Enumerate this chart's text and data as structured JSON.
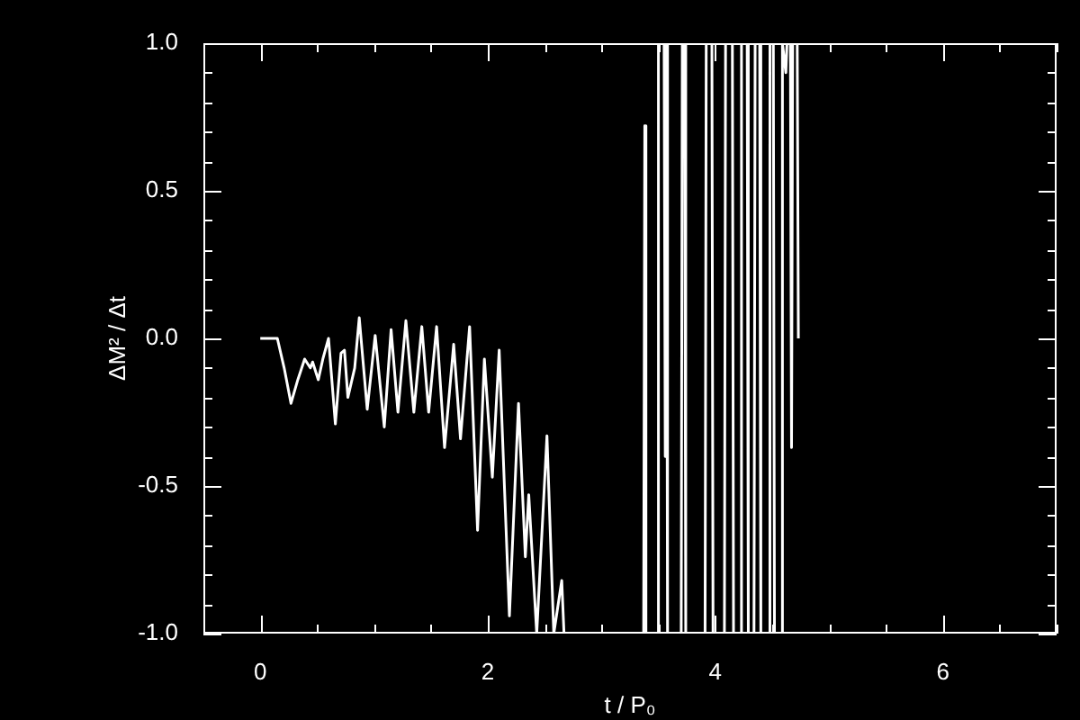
{
  "chart_data": {
    "type": "line",
    "xlabel": "t / P₀",
    "ylabel": "ΔM² / Δt",
    "color": "#ffffff",
    "marker": "none",
    "line_style": "solid",
    "grid": false,
    "xlim": [
      -0.5,
      7
    ],
    "xticks": [
      {
        "value": -0.5,
        "label": null
      },
      0,
      {
        "value": 0.5,
        "label": null
      },
      {
        "value": 1,
        "label": null
      },
      {
        "value": 1.5,
        "label": null
      },
      2,
      {
        "value": 2.5,
        "label": null
      },
      {
        "value": 3,
        "label": null
      },
      {
        "value": 3.5,
        "label": null
      },
      4,
      {
        "value": 4.5,
        "label": null
      },
      {
        "value": 5,
        "label": null
      },
      {
        "value": 5.5,
        "label": null
      },
      6,
      {
        "value": 6.5,
        "label": null
      },
      {
        "value": 7,
        "label": null
      }
    ],
    "ylim": [
      -1,
      1
    ],
    "yticks": [
      {
        "value": -1,
        "label": "-1.0"
      },
      {
        "value": -0.9,
        "label": null
      },
      {
        "value": -0.8,
        "label": null
      },
      {
        "value": -0.7,
        "label": null
      },
      {
        "value": -0.6,
        "label": null
      },
      {
        "value": -0.5,
        "label": "-0.5"
      },
      {
        "value": -0.4,
        "label": null
      },
      {
        "value": -0.3,
        "label": null
      },
      {
        "value": -0.2,
        "label": null
      },
      {
        "value": -0.1,
        "label": null
      },
      {
        "value": 0,
        "label": "0.0"
      },
      {
        "value": 0.1,
        "label": null
      },
      {
        "value": 0.2,
        "label": null
      },
      {
        "value": 0.3,
        "label": null
      },
      {
        "value": 0.4,
        "label": null
      },
      {
        "value": 0.5,
        "label": "0.5"
      },
      {
        "value": 0.6,
        "label": null
      },
      {
        "value": 0.7,
        "label": null
      },
      {
        "value": 0.8,
        "label": null
      },
      {
        "value": 0.9,
        "label": null
      },
      {
        "value": 1,
        "label": "1.0"
      }
    ],
    "x": [
      0,
      0.04,
      0.15,
      0.21,
      0.27,
      0.33,
      0.39,
      0.44,
      0.46,
      0.51,
      0.55,
      0.6,
      0.66,
      0.71,
      0.74,
      0.77,
      0.83,
      0.87,
      0.94,
      1.01,
      1.09,
      1.15,
      1.21,
      1.28,
      1.35,
      1.42,
      1.48,
      1.55,
      1.62,
      1.7,
      1.76,
      1.84,
      1.91,
      1.97,
      2.04,
      2.1,
      2.19,
      2.27,
      2.33,
      2.36,
      2.43,
      2.52,
      2.58,
      2.65,
      2.67,
      3.0,
      3.37,
      3.38,
      3.39,
      3.49,
      3.5,
      3.55,
      3.56,
      3.57,
      3.58,
      3.7,
      3.71,
      3.73,
      3.74,
      3.91,
      3.92,
      3.97,
      3.98,
      4.08,
      4.09,
      4.15,
      4.16,
      4.22,
      4.23,
      4.28,
      4.29,
      4.34,
      4.35,
      4.39,
      4.4,
      4.47,
      4.48,
      4.51,
      4.52,
      4.58,
      4.59,
      4.62,
      4.63,
      4.66,
      4.67,
      4.68,
      4.72,
      4.73
    ],
    "values": [
      0,
      0,
      0,
      -0.1,
      -0.22,
      -0.14,
      -0.07,
      -0.1,
      -0.08,
      -0.14,
      -0.07,
      0,
      -0.29,
      -0.05,
      -0.04,
      -0.2,
      -0.1,
      0.07,
      -0.24,
      0.01,
      -0.3,
      0.03,
      -0.25,
      0.06,
      -0.25,
      0.04,
      -0.25,
      0.04,
      -0.37,
      -0.02,
      -0.34,
      0.04,
      -0.65,
      -0.07,
      -0.47,
      -0.04,
      -0.94,
      -0.22,
      -0.74,
      -0.53,
      -1,
      -0.33,
      -1,
      -0.82,
      -1,
      null,
      -1,
      0.72,
      -1,
      -1,
      1,
      1,
      -0.4,
      1,
      -1,
      -1,
      1,
      1,
      -1,
      -1,
      1,
      1,
      -1,
      -1,
      1,
      1,
      -1,
      -1,
      1,
      1,
      -1,
      -1,
      1,
      1,
      -1,
      -1,
      1,
      1,
      -1,
      -1,
      1,
      0.9,
      1,
      1,
      -0.37,
      1,
      1,
      0
    ]
  }
}
